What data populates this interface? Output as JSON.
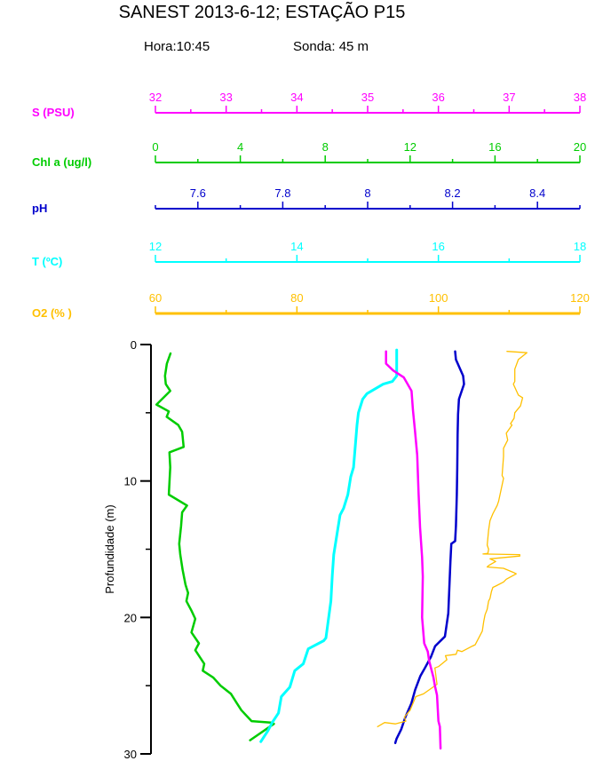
{
  "header": {
    "title": "SANEST 2013-6-12; ESTAÇÃO P15",
    "hora": "Hora:10:45",
    "sonda": "Sonda: 45 m"
  },
  "chart_data": {
    "type": "line",
    "orientation": "vertical-profile",
    "ylabel": "Profundidade (m)",
    "depth_axis": {
      "min": 0,
      "max": 30,
      "major_ticks": [
        0,
        10,
        20,
        30
      ],
      "minor_ticks": [
        5,
        15,
        25
      ],
      "color": "#000000"
    },
    "axes": [
      {
        "id": "S",
        "label": "S (PSU)",
        "color": "#ff00ff",
        "min": 32,
        "max": 38,
        "major_ticks": [
          32,
          33,
          34,
          35,
          36,
          37,
          38
        ],
        "minor_step": 0.5,
        "thick": false
      },
      {
        "id": "Chl",
        "label": "Chl a (ug/l)",
        "color": "#00cc00",
        "min": 0,
        "max": 20,
        "major_ticks": [
          0,
          4,
          8,
          12,
          16,
          20
        ],
        "minor_step": 2,
        "thick": false
      },
      {
        "id": "pH",
        "label": "pH",
        "color": "#0000cc",
        "min": 7.5,
        "max": 8.5,
        "major_ticks": [
          7.6,
          7.8,
          8,
          8.2,
          8.4
        ],
        "minor_step": 0.1,
        "thick": false
      },
      {
        "id": "T",
        "label": "T (ºC)",
        "color": "#00ffff",
        "min": 12,
        "max": 18,
        "major_ticks": [
          12,
          14,
          16,
          18
        ],
        "minor_step": 1,
        "thick": false
      },
      {
        "id": "O2",
        "label": "O2 (% )",
        "color": "#ffc000",
        "min": 60,
        "max": 120,
        "major_ticks": [
          60,
          80,
          100,
          120
        ],
        "minor_step": 10,
        "thick": true
      }
    ],
    "series": [
      {
        "axis": "Chl",
        "name": "Chlorophyll a profile",
        "points": [
          [
            0.65,
            0.71
          ],
          [
            1.4,
            0.54
          ],
          [
            2.3,
            0.45
          ],
          [
            2.9,
            0.49
          ],
          [
            3.4,
            0.7
          ],
          [
            4.4,
            0.05
          ],
          [
            4.9,
            0.63
          ],
          [
            5.3,
            0.53
          ],
          [
            5.9,
            1.08
          ],
          [
            6.4,
            1.26
          ],
          [
            7.5,
            1.33
          ],
          [
            7.9,
            0.66
          ],
          [
            9.0,
            0.7
          ],
          [
            11.0,
            0.63
          ],
          [
            11.8,
            1.49
          ],
          [
            12.3,
            1.26
          ],
          [
            13.3,
            1.21
          ],
          [
            14.6,
            1.12
          ],
          [
            15.4,
            1.17
          ],
          [
            16.5,
            1.28
          ],
          [
            17.6,
            1.42
          ],
          [
            18.2,
            1.54
          ],
          [
            18.8,
            1.46
          ],
          [
            19.5,
            1.7
          ],
          [
            20.1,
            1.88
          ],
          [
            21.1,
            1.7
          ],
          [
            21.9,
            2.05
          ],
          [
            22.4,
            1.88
          ],
          [
            23.4,
            2.3
          ],
          [
            23.9,
            2.23
          ],
          [
            24.4,
            2.72
          ],
          [
            25.0,
            3.07
          ],
          [
            25.6,
            3.56
          ],
          [
            26.3,
            3.84
          ],
          [
            26.8,
            4.05
          ],
          [
            27.6,
            4.53
          ],
          [
            27.7,
            5.44
          ],
          [
            27.8,
            5.58
          ],
          [
            29.0,
            4.46
          ]
        ]
      },
      {
        "axis": "T",
        "name": "Temperature profile",
        "points": [
          [
            0.4,
            15.41
          ],
          [
            2.3,
            15.41
          ],
          [
            2.7,
            15.35
          ],
          [
            2.9,
            15.22
          ],
          [
            3.6,
            14.99
          ],
          [
            4.0,
            14.93
          ],
          [
            5.0,
            14.87
          ],
          [
            5.9,
            14.85
          ],
          [
            9.0,
            14.8
          ],
          [
            9.7,
            14.76
          ],
          [
            11.0,
            14.72
          ],
          [
            12.0,
            14.66
          ],
          [
            12.5,
            14.61
          ],
          [
            13.8,
            14.57
          ],
          [
            15.4,
            14.52
          ],
          [
            16.9,
            14.5
          ],
          [
            18.8,
            14.48
          ],
          [
            21.5,
            14.41
          ],
          [
            21.7,
            14.38
          ],
          [
            22.3,
            14.16
          ],
          [
            23.4,
            14.09
          ],
          [
            23.9,
            13.97
          ],
          [
            25.1,
            13.9
          ],
          [
            25.8,
            13.78
          ],
          [
            27.0,
            13.74
          ],
          [
            27.7,
            13.65
          ],
          [
            28.3,
            13.59
          ],
          [
            29.1,
            13.49
          ]
        ]
      },
      {
        "axis": "pH",
        "name": "pH profile",
        "points": [
          [
            0.5,
            8.206
          ],
          [
            1.1,
            8.208
          ],
          [
            2.3,
            8.225
          ],
          [
            2.9,
            8.227
          ],
          [
            4.0,
            8.215
          ],
          [
            5.1,
            8.213
          ],
          [
            6.6,
            8.212
          ],
          [
            9.0,
            8.211
          ],
          [
            11.0,
            8.21
          ],
          [
            13.3,
            8.208
          ],
          [
            14.4,
            8.206
          ],
          [
            14.6,
            8.197
          ],
          [
            15.9,
            8.195
          ],
          [
            19.7,
            8.19
          ],
          [
            21.4,
            8.182
          ],
          [
            22.1,
            8.159
          ],
          [
            22.9,
            8.149
          ],
          [
            23.7,
            8.135
          ],
          [
            24.3,
            8.124
          ],
          [
            25.3,
            8.112
          ],
          [
            26.3,
            8.103
          ],
          [
            27.3,
            8.089
          ],
          [
            28.2,
            8.079
          ],
          [
            28.9,
            8.068
          ],
          [
            29.2,
            8.065
          ]
        ]
      },
      {
        "axis": "O2",
        "name": "Oxygen saturation profile",
        "points": [
          [
            0.5,
            109.7
          ],
          [
            0.6,
            112.5
          ],
          [
            1.1,
            111.3
          ],
          [
            1.8,
            110.8
          ],
          [
            2.7,
            110.8
          ],
          [
            2.9,
            110.6
          ],
          [
            3.7,
            111.3
          ],
          [
            3.9,
            111.9
          ],
          [
            4.5,
            111.6
          ],
          [
            5.0,
            110.8
          ],
          [
            5.4,
            110.7
          ],
          [
            5.8,
            110.2
          ],
          [
            5.9,
            110.4
          ],
          [
            6.5,
            109.6
          ],
          [
            7.0,
            109.8
          ],
          [
            7.6,
            109.2
          ],
          [
            8.2,
            109.2
          ],
          [
            9.6,
            109.0
          ],
          [
            9.8,
            109.2
          ],
          [
            11.5,
            108.5
          ],
          [
            11.8,
            108.3
          ],
          [
            12.4,
            107.7
          ],
          [
            12.9,
            107.3
          ],
          [
            13.6,
            107.1
          ],
          [
            14.7,
            106.9
          ],
          [
            15.0,
            107.1
          ],
          [
            15.3,
            107.0
          ],
          [
            15.35,
            106.3
          ],
          [
            15.4,
            111.5
          ],
          [
            15.5,
            111.5
          ],
          [
            15.7,
            107.3
          ],
          [
            15.9,
            108.1
          ],
          [
            16.2,
            107.1
          ],
          [
            16.3,
            106.9
          ],
          [
            16.4,
            109.2
          ],
          [
            16.7,
            110.6
          ],
          [
            16.8,
            111.0
          ],
          [
            17.2,
            109.6
          ],
          [
            17.4,
            109.2
          ],
          [
            17.7,
            108.1
          ],
          [
            17.8,
            107.7
          ],
          [
            18.1,
            107.5
          ],
          [
            18.6,
            107.3
          ],
          [
            18.8,
            107.1
          ],
          [
            19.4,
            106.9
          ],
          [
            19.8,
            106.6
          ],
          [
            20.3,
            106.4
          ],
          [
            21.0,
            106.2
          ],
          [
            22.0,
            105.2
          ],
          [
            22.1,
            104.8
          ],
          [
            22.5,
            103.3
          ],
          [
            22.4,
            102.7
          ],
          [
            22.7,
            102.5
          ],
          [
            22.8,
            101.0
          ],
          [
            23.1,
            101.2
          ],
          [
            23.6,
            100.0
          ],
          [
            23.7,
            99.5
          ],
          [
            24.9,
            99.8
          ],
          [
            25.6,
            97.9
          ],
          [
            25.8,
            96.8
          ],
          [
            26.8,
            96.0
          ],
          [
            27.3,
            95.2
          ],
          [
            27.6,
            95.4
          ],
          [
            27.8,
            93.9
          ],
          [
            27.7,
            92.4
          ],
          [
            28.0,
            91.4
          ]
        ]
      },
      {
        "axis": "S",
        "name": "Salinity profile",
        "points": [
          [
            0.5,
            35.26
          ],
          [
            1.4,
            35.26
          ],
          [
            1.9,
            35.36
          ],
          [
            2.4,
            35.51
          ],
          [
            3.4,
            35.62
          ],
          [
            4.8,
            35.64
          ],
          [
            6.4,
            35.67
          ],
          [
            8.1,
            35.7
          ],
          [
            11.0,
            35.72
          ],
          [
            13.4,
            35.74
          ],
          [
            15.6,
            35.77
          ],
          [
            17.0,
            35.78
          ],
          [
            20.0,
            35.77
          ],
          [
            21.9,
            35.8
          ],
          [
            22.5,
            35.85
          ],
          [
            23.2,
            35.87
          ],
          [
            24.4,
            35.93
          ],
          [
            25.0,
            35.95
          ],
          [
            25.7,
            35.98
          ],
          [
            27.6,
            36.0
          ],
          [
            28.0,
            36.02
          ],
          [
            29.6,
            36.03
          ]
        ]
      }
    ]
  }
}
